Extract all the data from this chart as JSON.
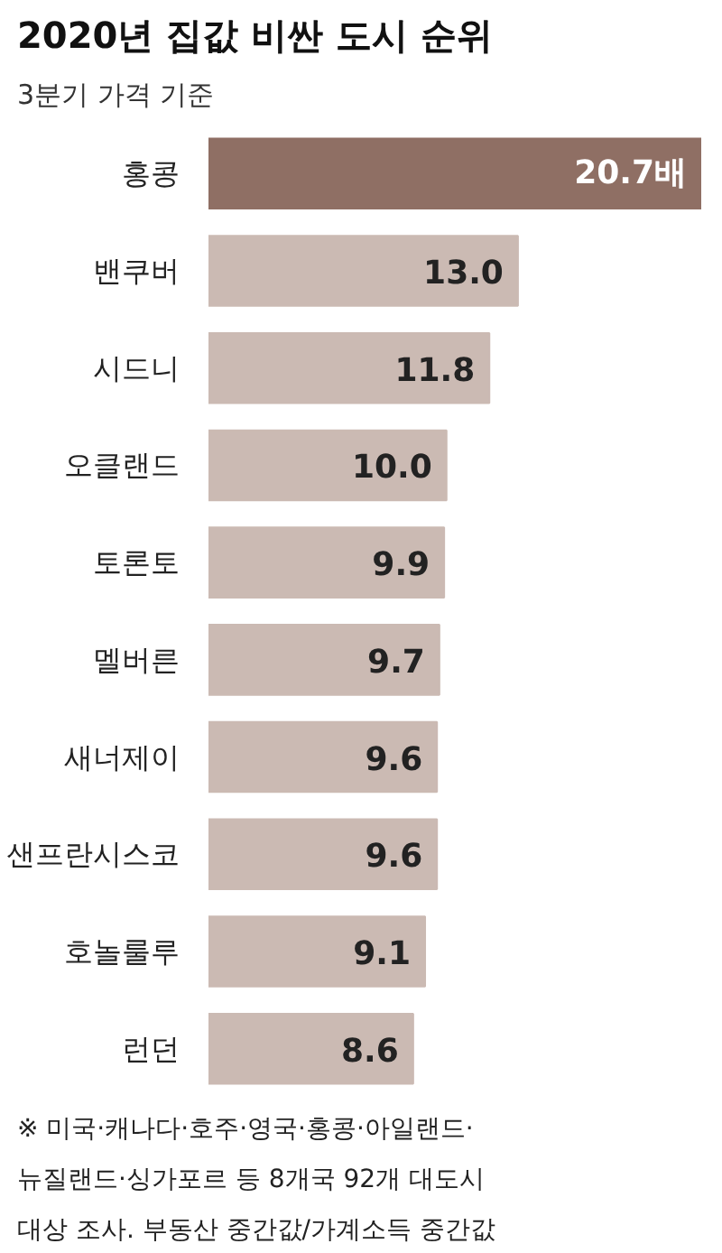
{
  "chart_data": {
    "type": "bar",
    "orientation": "horizontal",
    "title": "2020년 집값 비싼 도시 순위",
    "subtitle": "3분기 가격 기준",
    "categories": [
      "홍콩",
      "밴쿠버",
      "시드니",
      "오클랜드",
      "토론토",
      "멜버른",
      "새너제이",
      "샌프란시스코",
      "호놀룰루",
      "런던"
    ],
    "values": [
      20.7,
      13.0,
      11.8,
      10.0,
      9.9,
      9.7,
      9.6,
      9.6,
      9.1,
      8.6
    ],
    "value_labels": [
      "20.7배",
      "13.0",
      "11.8",
      "10.0",
      "9.9",
      "9.7",
      "9.6",
      "9.6",
      "9.1",
      "8.6"
    ],
    "colors": [
      "#8f6f64",
      "#cbbab3",
      "#cbbab3",
      "#cbbab3",
      "#cbbab3",
      "#cbbab3",
      "#cbbab3",
      "#cbbab3",
      "#cbbab3",
      "#cbbab3"
    ],
    "annotations": [
      "※ 미국·캐나다·호주·영국·홍콩·아일랜드·",
      "뉴질랜드·싱가포르 등 8개국 92개 대도시",
      "대상 조사. 부동산 중간값/가계소득 중간값"
    ],
    "grid": false
  }
}
